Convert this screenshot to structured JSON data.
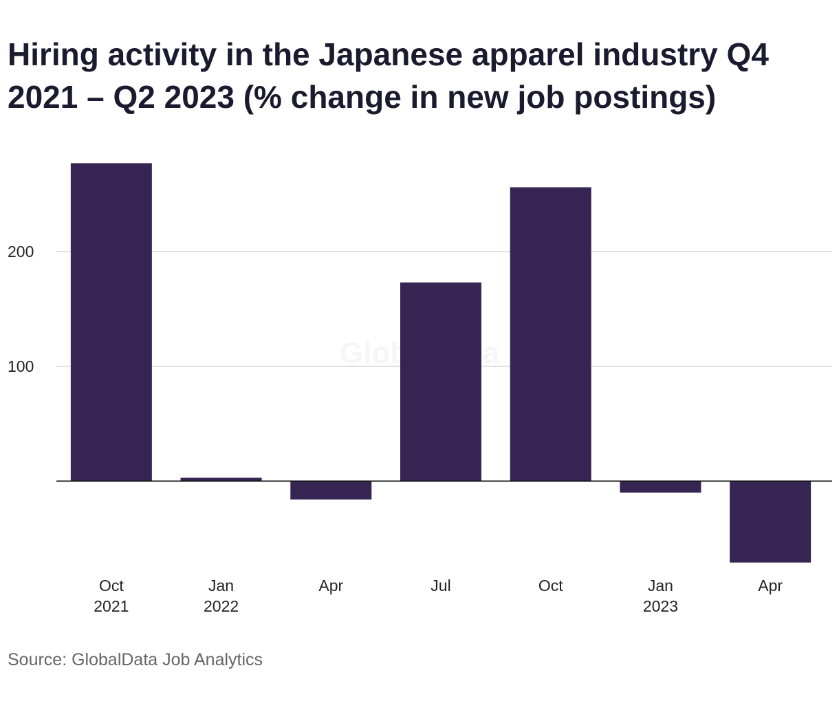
{
  "chart_data": {
    "type": "bar",
    "title": "Hiring activity in the Japanese apparel industry Q4 2021 – Q2 2023 (% change in new job postings)",
    "categories": [
      "Oct 2021",
      "Jan 2022",
      "Apr",
      "Jul",
      "Oct",
      "Jan 2023",
      "Apr"
    ],
    "category_lines": [
      [
        "Oct",
        "2021"
      ],
      [
        "Jan",
        "2022"
      ],
      [
        "Apr"
      ],
      [
        "Jul"
      ],
      [
        "Oct"
      ],
      [
        "Jan",
        "2023"
      ],
      [
        "Apr"
      ]
    ],
    "values": [
      277,
      3,
      -16,
      173,
      256,
      -10,
      -71
    ],
    "y_ticks": [
      100,
      200
    ],
    "ylim": [
      -85,
      295
    ],
    "grid": true,
    "bar_color": "#362452",
    "xlabel": "",
    "ylabel": ""
  },
  "watermark": "GlobalData",
  "source": "Source: GlobalData Job Analytics"
}
